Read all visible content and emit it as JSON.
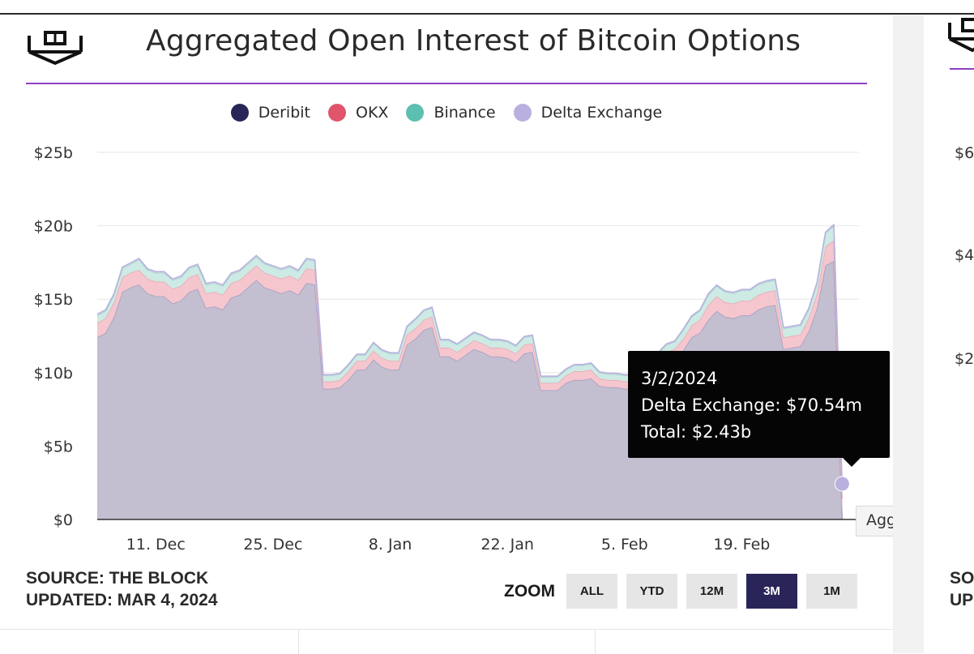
{
  "title": "Aggregated Open Interest of Bitcoin Options",
  "source_line": "SOURCE: THE BLOCK",
  "updated_line": "UPDATED: MAR 4, 2024",
  "zoom": {
    "label": "ZOOM",
    "buttons": [
      "ALL",
      "YTD",
      "12M",
      "3M",
      "1M"
    ],
    "active": "3M"
  },
  "colors": {
    "deribit": "#2a2559",
    "okx": "#e0556b",
    "binance": "#5cbfb1",
    "delta": "#b9b0e0",
    "title_rule": "#8f3fc4"
  },
  "tooltip": {
    "date": "3/2/2024",
    "series_line": "Delta Exchange: $70.54m",
    "total_line": "Total: $2.43b"
  },
  "hover_label": "Aggregated C",
  "right_panel": {
    "ticks": [
      "$6",
      "$4",
      "$2"
    ],
    "source_partial": "SO",
    "updated_partial": "UP"
  },
  "chart_data": {
    "type": "area",
    "stacked": true,
    "legend_position": "top-center",
    "grid": true,
    "y_ticks": [
      "$25b",
      "$20b",
      "$15b",
      "$10b",
      "$5b",
      "$0"
    ],
    "ylim": [
      0,
      25
    ],
    "y_unit": "b",
    "x_ticks": [
      "11. Dec",
      "25. Dec",
      "8. Jan",
      "22. Jan",
      "5. Feb",
      "19. Feb"
    ],
    "x_tick_dates": [
      "2023-12-11",
      "2023-12-25",
      "2024-01-08",
      "2024-01-22",
      "2024-02-05",
      "2024-02-19"
    ],
    "xlim": [
      "2023-12-04",
      "2024-03-04"
    ],
    "x": [
      "2023-12-04",
      "2023-12-05",
      "2023-12-06",
      "2023-12-07",
      "2023-12-08",
      "2023-12-09",
      "2023-12-10",
      "2023-12-11",
      "2023-12-12",
      "2023-12-13",
      "2023-12-14",
      "2023-12-15",
      "2023-12-16",
      "2023-12-17",
      "2023-12-18",
      "2023-12-19",
      "2023-12-20",
      "2023-12-21",
      "2023-12-22",
      "2023-12-23",
      "2023-12-24",
      "2023-12-25",
      "2023-12-26",
      "2023-12-27",
      "2023-12-28",
      "2023-12-29",
      "2023-12-30",
      "2023-12-31",
      "2024-01-01",
      "2024-01-02",
      "2024-01-03",
      "2024-01-04",
      "2024-01-05",
      "2024-01-06",
      "2024-01-07",
      "2024-01-08",
      "2024-01-09",
      "2024-01-10",
      "2024-01-11",
      "2024-01-12",
      "2024-01-13",
      "2024-01-14",
      "2024-01-15",
      "2024-01-16",
      "2024-01-17",
      "2024-01-18",
      "2024-01-19",
      "2024-01-20",
      "2024-01-21",
      "2024-01-22",
      "2024-01-23",
      "2024-01-24",
      "2024-01-25",
      "2024-01-26",
      "2024-01-27",
      "2024-01-28",
      "2024-01-29",
      "2024-01-30",
      "2024-01-31",
      "2024-02-01",
      "2024-02-02",
      "2024-02-03",
      "2024-02-04",
      "2024-02-05",
      "2024-02-06",
      "2024-02-07",
      "2024-02-08",
      "2024-02-09",
      "2024-02-10",
      "2024-02-11",
      "2024-02-12",
      "2024-02-13",
      "2024-02-14",
      "2024-02-15",
      "2024-02-16",
      "2024-02-17",
      "2024-02-18",
      "2024-02-19",
      "2024-02-20",
      "2024-02-21",
      "2024-02-22",
      "2024-02-23",
      "2024-02-24",
      "2024-02-25",
      "2024-02-26",
      "2024-02-27",
      "2024-02-28",
      "2024-02-29",
      "2024-03-01",
      "2024-03-02"
    ],
    "series": [
      {
        "name": "Deribit",
        "values": [
          12.4,
          12.7,
          13.8,
          15.5,
          15.8,
          16.0,
          15.4,
          15.2,
          15.2,
          14.7,
          14.9,
          15.5,
          15.7,
          14.4,
          14.5,
          14.3,
          15.1,
          15.3,
          15.8,
          16.3,
          15.8,
          15.6,
          15.4,
          15.6,
          15.3,
          16.1,
          16.0,
          8.9,
          8.9,
          9.0,
          9.5,
          10.2,
          10.2,
          10.9,
          10.4,
          10.2,
          10.2,
          11.9,
          12.3,
          12.9,
          13.1,
          11.1,
          11.1,
          10.8,
          11.2,
          11.6,
          11.4,
          11.1,
          11.1,
          11.0,
          10.7,
          11.3,
          11.4,
          8.8,
          8.8,
          8.8,
          9.3,
          9.5,
          9.5,
          9.6,
          9.1,
          9.0,
          9.0,
          8.9,
          8.9,
          9.3,
          10.0,
          10.2,
          10.7,
          10.9,
          11.5,
          12.4,
          12.7,
          13.6,
          14.2,
          13.8,
          13.7,
          13.9,
          13.9,
          14.3,
          14.5,
          14.6,
          11.6,
          11.7,
          11.8,
          12.8,
          14.4,
          17.3,
          17.6,
          0.0
        ]
      },
      {
        "name": "OKX",
        "values": [
          1.0,
          1.0,
          1.0,
          1.0,
          1.0,
          1.0,
          1.0,
          1.0,
          1.0,
          1.0,
          1.0,
          1.0,
          1.0,
          1.0,
          1.0,
          1.0,
          1.0,
          1.0,
          1.0,
          1.0,
          1.0,
          1.0,
          1.0,
          1.0,
          1.0,
          1.0,
          1.0,
          0.5,
          0.5,
          0.5,
          0.6,
          0.6,
          0.6,
          0.6,
          0.6,
          0.6,
          0.6,
          0.7,
          0.7,
          0.7,
          0.7,
          0.6,
          0.6,
          0.6,
          0.6,
          0.6,
          0.6,
          0.6,
          0.6,
          0.6,
          0.6,
          0.6,
          0.6,
          0.5,
          0.5,
          0.5,
          0.5,
          0.6,
          0.6,
          0.6,
          0.5,
          0.5,
          0.5,
          0.5,
          0.5,
          0.6,
          0.6,
          0.6,
          0.7,
          0.7,
          0.8,
          0.8,
          0.9,
          1.0,
          1.0,
          1.0,
          1.0,
          1.0,
          1.0,
          1.0,
          1.0,
          1.0,
          0.8,
          0.8,
          0.8,
          0.9,
          1.0,
          1.3,
          1.4,
          1.4
        ]
      },
      {
        "name": "Binance",
        "values": [
          0.5,
          0.5,
          0.5,
          0.6,
          0.6,
          0.7,
          0.6,
          0.6,
          0.6,
          0.6,
          0.6,
          0.6,
          0.6,
          0.6,
          0.6,
          0.6,
          0.6,
          0.6,
          0.6,
          0.6,
          0.6,
          0.6,
          0.6,
          0.6,
          0.6,
          0.6,
          0.6,
          0.4,
          0.4,
          0.4,
          0.4,
          0.4,
          0.4,
          0.5,
          0.5,
          0.5,
          0.5,
          0.5,
          0.6,
          0.6,
          0.6,
          0.5,
          0.5,
          0.5,
          0.5,
          0.5,
          0.5,
          0.5,
          0.5,
          0.5,
          0.5,
          0.5,
          0.5,
          0.4,
          0.4,
          0.4,
          0.4,
          0.4,
          0.4,
          0.4,
          0.4,
          0.4,
          0.4,
          0.4,
          0.4,
          0.4,
          0.4,
          0.5,
          0.5,
          0.5,
          0.6,
          0.6,
          0.6,
          0.7,
          0.7,
          0.7,
          0.7,
          0.7,
          0.7,
          0.7,
          0.7,
          0.7,
          0.6,
          0.6,
          0.6,
          0.6,
          0.7,
          0.9,
          1.0,
          0.96
        ]
      },
      {
        "name": "Delta Exchange",
        "values": [
          0.08,
          0.08,
          0.08,
          0.08,
          0.08,
          0.08,
          0.08,
          0.08,
          0.08,
          0.08,
          0.08,
          0.08,
          0.08,
          0.08,
          0.08,
          0.08,
          0.08,
          0.08,
          0.08,
          0.08,
          0.08,
          0.08,
          0.08,
          0.08,
          0.08,
          0.08,
          0.08,
          0.06,
          0.06,
          0.06,
          0.06,
          0.06,
          0.06,
          0.06,
          0.06,
          0.06,
          0.06,
          0.06,
          0.06,
          0.06,
          0.06,
          0.06,
          0.06,
          0.06,
          0.06,
          0.06,
          0.06,
          0.06,
          0.06,
          0.06,
          0.06,
          0.06,
          0.06,
          0.06,
          0.06,
          0.06,
          0.06,
          0.06,
          0.06,
          0.06,
          0.06,
          0.06,
          0.06,
          0.06,
          0.06,
          0.06,
          0.06,
          0.06,
          0.06,
          0.06,
          0.06,
          0.06,
          0.07,
          0.07,
          0.07,
          0.07,
          0.07,
          0.07,
          0.07,
          0.07,
          0.07,
          0.07,
          0.07,
          0.07,
          0.07,
          0.07,
          0.07,
          0.07,
          0.07,
          0.07
        ]
      }
    ]
  }
}
